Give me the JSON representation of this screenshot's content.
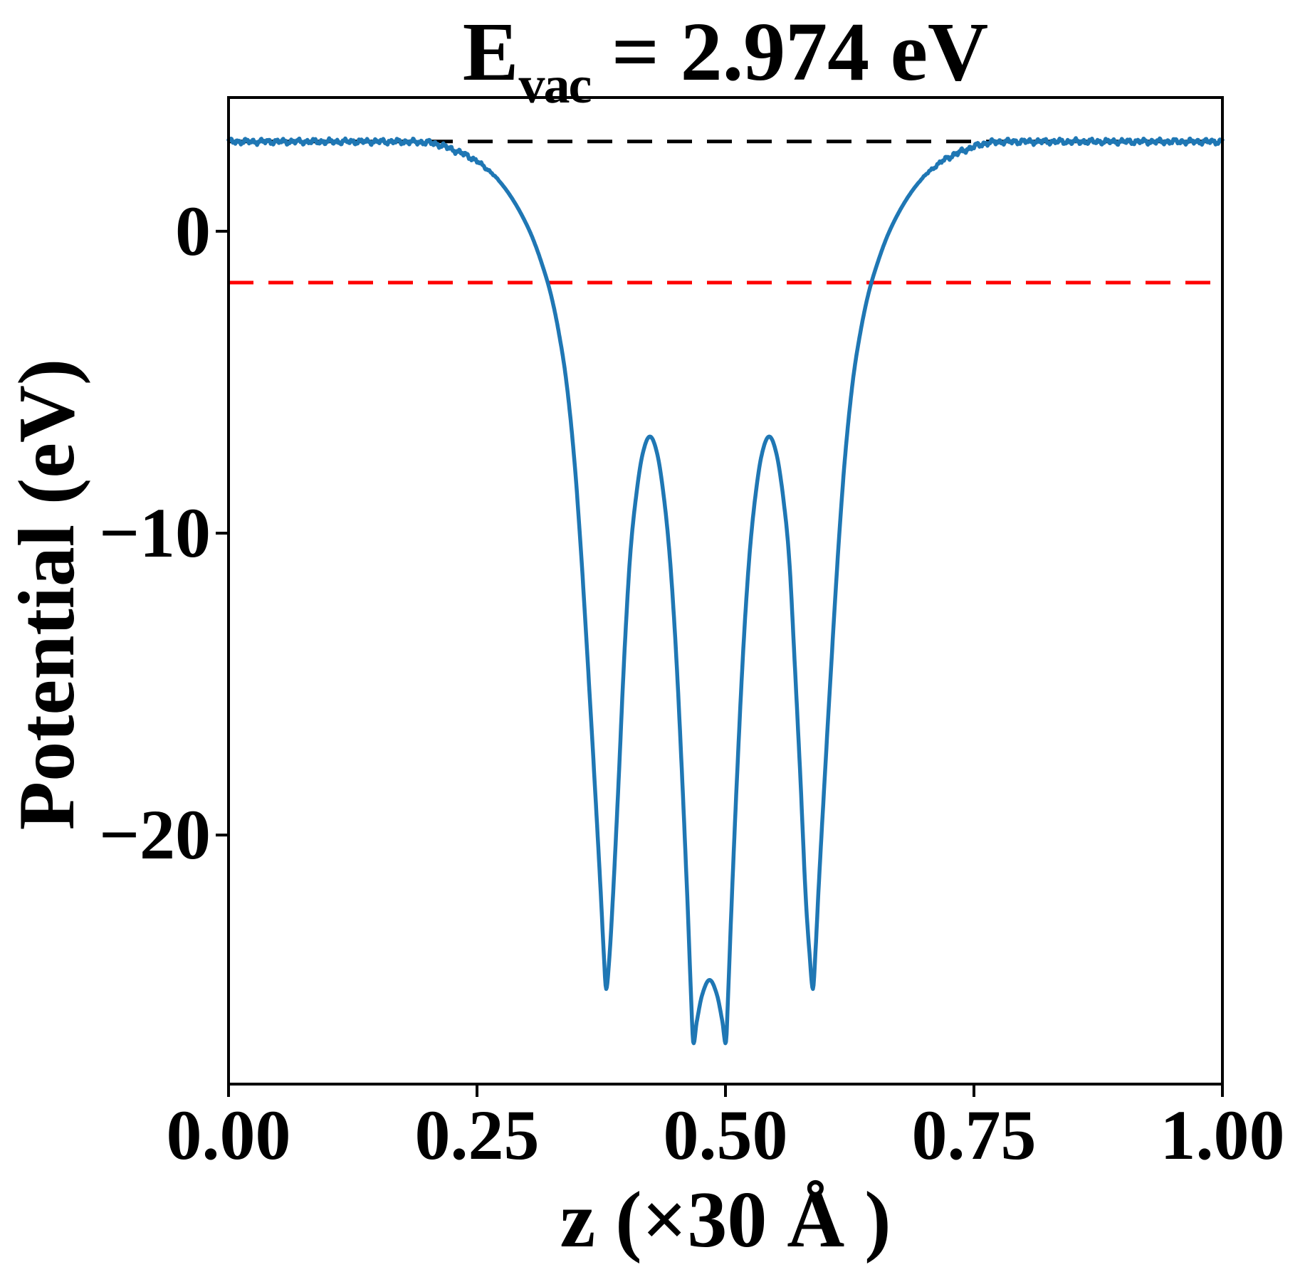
{
  "figure": {
    "background": "#ffffff",
    "title": {
      "base": "E",
      "subscript": "vac",
      "rest": " = 2.974 eV"
    },
    "x_axis": {
      "label": "z (×30 Å )",
      "ticks": [
        {
          "label": "0.00",
          "value": 0.0
        },
        {
          "label": "0.25",
          "value": 0.25
        },
        {
          "label": "0.50",
          "value": 0.5
        },
        {
          "label": "0.75",
          "value": 0.75
        },
        {
          "label": "1.00",
          "value": 1.0
        }
      ]
    },
    "y_axis": {
      "label": "Potential (eV)",
      "ticks": [
        {
          "label": "0",
          "value": 0
        },
        {
          "label": "−10",
          "value": -10
        },
        {
          "label": "−20",
          "value": -20
        }
      ]
    }
  },
  "chart_data": {
    "type": "line",
    "title": "E_vac = 2.974 eV",
    "xlabel": "z (×30 Å )",
    "ylabel": "Potential (eV)",
    "xlim": [
      0,
      1
    ],
    "ylim": [
      -28.25,
      4.43
    ],
    "grid": false,
    "legend": "none",
    "vacuum_energy_eV": 2.974,
    "reference_lines": [
      {
        "name": "vacuum-level-line",
        "value": 2.974,
        "color": "#000000",
        "style": "dashed"
      },
      {
        "name": "fermi-level-line",
        "value": -1.7,
        "color": "#ff0000",
        "style": "dashed"
      }
    ],
    "series": [
      {
        "name": "planar-averaged-electrostatic-potential",
        "color": "#1f77b4",
        "style": "solid",
        "keypoints": [
          [
            0.0,
            2.97
          ],
          [
            0.04,
            2.97
          ],
          [
            0.08,
            2.97
          ],
          [
            0.12,
            2.97
          ],
          [
            0.16,
            2.97
          ],
          [
            0.185,
            2.96
          ],
          [
            0.195,
            2.95
          ],
          [
            0.205,
            2.92
          ],
          [
            0.218,
            2.8
          ],
          [
            0.232,
            2.62
          ],
          [
            0.245,
            2.42
          ],
          [
            0.258,
            2.12
          ],
          [
            0.27,
            1.75
          ],
          [
            0.282,
            1.25
          ],
          [
            0.294,
            0.6
          ],
          [
            0.305,
            -0.15
          ],
          [
            0.315,
            -1.05
          ],
          [
            0.324,
            -2.05
          ],
          [
            0.332,
            -3.3
          ],
          [
            0.34,
            -5.0
          ],
          [
            0.348,
            -7.6
          ],
          [
            0.355,
            -10.8
          ],
          [
            0.362,
            -14.6
          ],
          [
            0.369,
            -18.6
          ],
          [
            0.3745,
            -21.9
          ],
          [
            0.3775,
            -23.9
          ],
          [
            0.38,
            -25.1
          ],
          [
            0.3835,
            -23.9
          ],
          [
            0.387,
            -21.9
          ],
          [
            0.3925,
            -18.2
          ],
          [
            0.398,
            -14.2
          ],
          [
            0.404,
            -10.8
          ],
          [
            0.41,
            -8.8
          ],
          [
            0.4165,
            -7.4
          ],
          [
            0.424,
            -6.8
          ],
          [
            0.4315,
            -7.4
          ],
          [
            0.438,
            -8.8
          ],
          [
            0.444,
            -10.8
          ],
          [
            0.45,
            -13.8
          ],
          [
            0.456,
            -17.8
          ],
          [
            0.4615,
            -22.0
          ],
          [
            0.465,
            -25.0
          ],
          [
            0.4675,
            -26.85
          ],
          [
            0.471,
            -26.2
          ],
          [
            0.4765,
            -25.3
          ],
          [
            0.484,
            -24.8
          ],
          [
            0.4915,
            -25.3
          ],
          [
            0.497,
            -26.2
          ],
          [
            0.5005,
            -26.85
          ],
          [
            0.503,
            -25.0
          ],
          [
            0.5065,
            -22.0
          ],
          [
            0.512,
            -17.8
          ],
          [
            0.518,
            -13.8
          ],
          [
            0.524,
            -10.8
          ],
          [
            0.53,
            -8.8
          ],
          [
            0.5365,
            -7.4
          ],
          [
            0.544,
            -6.8
          ],
          [
            0.5515,
            -7.4
          ],
          [
            0.558,
            -8.8
          ],
          [
            0.564,
            -10.8
          ],
          [
            0.5695,
            -14.2
          ],
          [
            0.5755,
            -18.2
          ],
          [
            0.5805,
            -21.9
          ],
          [
            0.5845,
            -23.9
          ],
          [
            0.588,
            -25.1
          ],
          [
            0.5905,
            -23.9
          ],
          [
            0.5935,
            -21.9
          ],
          [
            0.599,
            -18.6
          ],
          [
            0.606,
            -14.6
          ],
          [
            0.613,
            -10.8
          ],
          [
            0.62,
            -7.6
          ],
          [
            0.628,
            -5.0
          ],
          [
            0.636,
            -3.3
          ],
          [
            0.644,
            -2.05
          ],
          [
            0.653,
            -1.05
          ],
          [
            0.663,
            -0.15
          ],
          [
            0.674,
            0.6
          ],
          [
            0.686,
            1.25
          ],
          [
            0.698,
            1.75
          ],
          [
            0.71,
            2.12
          ],
          [
            0.723,
            2.42
          ],
          [
            0.736,
            2.62
          ],
          [
            0.75,
            2.8
          ],
          [
            0.763,
            2.92
          ],
          [
            0.775,
            2.96
          ],
          [
            0.79,
            2.97
          ],
          [
            0.83,
            2.97
          ],
          [
            0.87,
            2.97
          ],
          [
            0.91,
            2.97
          ],
          [
            0.95,
            2.97
          ],
          [
            1.0,
            2.97
          ]
        ]
      }
    ]
  }
}
